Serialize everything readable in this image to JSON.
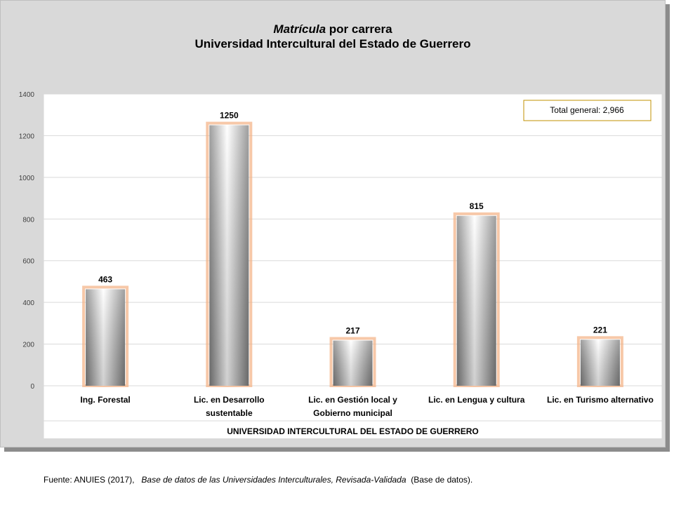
{
  "title": {
    "line1_italic": "Matrícula",
    "line1_rest": " por carrera",
    "line2": "Universidad Intercultural del Estado de Guerrero"
  },
  "colors": {
    "frame_bg": "#d9d9d9",
    "plot_bg": "#ffffff",
    "gridline": "#d9d9d9",
    "bar_glow": "#f4b183",
    "bar_dark": "#7f7f7f",
    "bar_light": "#ffffff",
    "annotation_border": "#c09000"
  },
  "chart_data": {
    "type": "bar",
    "title": "Matrícula por carrera Universidad Intercultural del Estado de Guerrero",
    "categories": [
      [
        "Ing. Forestal"
      ],
      [
        "Lic. en Desarrollo",
        "sustentable"
      ],
      [
        "Lic. en Gestión local y",
        "Gobierno municipal"
      ],
      [
        "Lic. en Lengua y cultura"
      ],
      [
        "Lic. en Turismo alternativo"
      ]
    ],
    "values": [
      463,
      1250,
      217,
      815,
      221
    ],
    "data_labels": [
      "463",
      "1250",
      "217",
      "815",
      "221"
    ],
    "xlabel": "UNIVERSIDAD INTERCULTURAL DEL ESTADO DE GUERRERO",
    "ylabel": "",
    "ylim": [
      0,
      1400
    ],
    "yticks": [
      0,
      200,
      400,
      600,
      800,
      1000,
      1200,
      1400
    ],
    "grid": true,
    "legend": "none",
    "annotation": "Total general: 2,966"
  },
  "source": {
    "prefix": "Fuente: ANUIES (2017),",
    "italic": "Base de datos de las Universidades  Interculturales, Revisada-Validada",
    "suffix": "(Base de datos)."
  }
}
